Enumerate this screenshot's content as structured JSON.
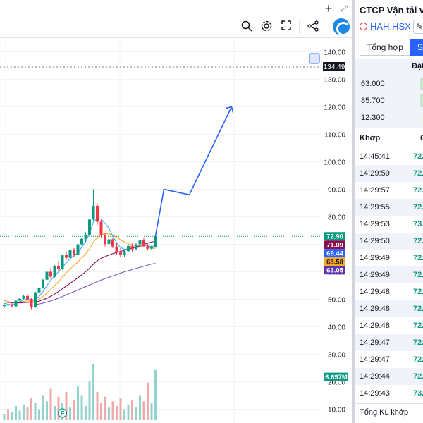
{
  "toolbar": {
    "plus_icon": "plus-icon",
    "expand_icon": "expand-icon",
    "magnifier_icon": "search-zoom-icon",
    "settings_icon": "gear-icon",
    "fullscreen_icon": "fullscreen-icon",
    "share_icon": "share-icon",
    "brand_icon": "brand-logo-icon"
  },
  "chart_data": {
    "type": "candlestick",
    "ylim": [
      5,
      145
    ],
    "y_ticks": [
      10,
      20,
      30,
      40,
      50,
      60,
      70,
      80,
      90,
      100,
      110,
      120,
      130,
      140
    ],
    "y_tick_labels": [
      "10.00",
      "20.00",
      "30.00",
      "40.00",
      "50.00",
      "60.00",
      "70.00",
      "80.00",
      "90.00",
      "100.00",
      "110.00",
      "120.00",
      "130.00",
      "140.00"
    ],
    "price_badges": [
      {
        "label": "134.49",
        "value": 134.49,
        "color": "#131722"
      },
      {
        "label": "72.90",
        "value": 72.9,
        "color": "#089981"
      },
      {
        "label": "71.09",
        "value": 71.09,
        "color": "#880e4f"
      },
      {
        "label": "69.44",
        "value": 69.44,
        "color": "#2962ff"
      },
      {
        "label": "68.58",
        "value": 68.58,
        "color": "#f9a825"
      },
      {
        "label": "63.05",
        "value": 63.05,
        "color": "#5e35b1"
      },
      {
        "label": "6.697M",
        "value": 21.5,
        "color": "#089981"
      }
    ],
    "current_price": 72.9,
    "candles": [
      [
        47.5,
        48.2,
        46.8,
        47.8
      ],
      [
        47.8,
        48.5,
        47.2,
        48.0
      ],
      [
        48.0,
        48.6,
        47.0,
        47.4
      ],
      [
        47.4,
        49.8,
        47.3,
        49.5
      ],
      [
        49.5,
        50.6,
        48.8,
        50.2
      ],
      [
        50.2,
        51.5,
        49.9,
        51.2
      ],
      [
        51.2,
        51.8,
        49.7,
        50.1
      ],
      [
        50.1,
        50.5,
        46.2,
        47.1
      ],
      [
        47.1,
        52.8,
        46.8,
        52.5
      ],
      [
        52.5,
        54.4,
        52.1,
        54.0
      ],
      [
        54.0,
        57.4,
        53.8,
        57.1
      ],
      [
        57.1,
        60.3,
        56.8,
        60.0
      ],
      [
        60.0,
        61.5,
        57.5,
        58.2
      ],
      [
        58.2,
        62.4,
        57.9,
        62.0
      ],
      [
        62.0,
        63.9,
        60.4,
        61.0
      ],
      [
        61.0,
        66.3,
        60.7,
        66.0
      ],
      [
        66.0,
        67.4,
        64.2,
        65.1
      ],
      [
        65.1,
        68.4,
        64.8,
        68.0
      ],
      [
        68.0,
        68.6,
        65.5,
        66.3
      ],
      [
        66.3,
        70.4,
        66.0,
        70.0
      ],
      [
        70.0,
        72.4,
        69.5,
        72.0
      ],
      [
        72.0,
        74.4,
        71.0,
        73.5
      ],
      [
        73.5,
        79.4,
        73.2,
        79.0
      ],
      [
        79.0,
        90.0,
        78.5,
        84.0
      ],
      [
        84.0,
        84.8,
        77.0,
        78.2
      ],
      [
        78.2,
        78.9,
        72.5,
        73.4
      ],
      [
        73.4,
        74.2,
        69.2,
        70.1
      ],
      [
        70.1,
        72.4,
        68.4,
        71.8
      ],
      [
        71.8,
        72.3,
        68.6,
        69.2
      ],
      [
        69.2,
        70.5,
        66.1,
        67.0
      ],
      [
        67.0,
        68.6,
        65.4,
        66.2
      ],
      [
        66.2,
        67.8,
        65.4,
        67.5
      ],
      [
        67.5,
        69.8,
        67.1,
        69.4
      ],
      [
        69.4,
        70.3,
        67.4,
        68.2
      ],
      [
        68.2,
        70.5,
        67.8,
        70.0
      ],
      [
        70.0,
        71.8,
        69.6,
        71.4
      ],
      [
        71.4,
        72.4,
        68.9,
        69.3
      ],
      [
        69.3,
        70.1,
        67.8,
        68.4
      ],
      [
        68.4,
        69.6,
        67.9,
        69.1
      ],
      [
        69.1,
        73.6,
        68.8,
        72.9
      ]
    ],
    "ma_series": [
      {
        "color": "#42a5f5",
        "values": [
          48.5,
          48.2,
          48.0,
          48.4,
          49.0,
          49.8,
          50.1,
          49.6,
          50.0,
          51.0,
          52.8,
          55.0,
          57.0,
          58.5,
          60.0,
          61.8,
          63.2,
          64.8,
          65.8,
          67.0,
          69.0,
          71.0,
          74.0,
          78.0,
          79.5,
          79.2,
          77.6,
          75.8,
          73.0,
          70.5,
          68.8,
          68.2,
          68.3,
          68.6,
          68.7,
          69.0,
          69.6,
          69.5,
          69.2,
          69.44
        ]
      },
      {
        "color": "#f9a825",
        "values": [
          49.5,
          49.2,
          48.9,
          48.8,
          48.9,
          49.2,
          49.4,
          49.3,
          49.5,
          50.0,
          51.0,
          52.3,
          53.6,
          55.0,
          56.4,
          58.0,
          59.6,
          61.0,
          62.3,
          63.6,
          65.0,
          66.5,
          68.4,
          70.8,
          72.5,
          73.5,
          73.9,
          73.8,
          73.4,
          72.6,
          71.6,
          70.8,
          70.2,
          69.8,
          69.4,
          69.2,
          69.0,
          68.8,
          68.6,
          68.58
        ]
      },
      {
        "color": "#880e4f",
        "values": [
          49.0,
          48.9,
          48.8,
          48.7,
          48.7,
          48.8,
          48.9,
          48.9,
          49.0,
          49.3,
          49.8,
          50.4,
          51.1,
          51.9,
          52.8,
          53.8,
          54.8,
          55.8,
          56.8,
          57.8,
          58.9,
          60.0,
          61.3,
          62.8,
          64.0,
          64.9,
          65.5,
          66.1,
          66.6,
          67.0,
          67.4,
          67.8,
          68.2,
          68.6,
          69.0,
          69.5,
          70.0,
          70.4,
          70.8,
          71.09
        ]
      },
      {
        "color": "#7e57c2",
        "values": [
          null,
          null,
          null,
          null,
          null,
          null,
          null,
          null,
          48.0,
          48.3,
          48.6,
          49.0,
          49.4,
          49.9,
          50.4,
          51.0,
          51.6,
          52.2,
          52.8,
          53.4,
          54.0,
          54.6,
          55.2,
          55.8,
          56.4,
          57.0,
          57.5,
          58.0,
          58.5,
          59.0,
          59.5,
          60.0,
          60.4,
          60.8,
          61.2,
          61.6,
          62.0,
          62.4,
          62.8,
          63.05
        ]
      }
    ],
    "forecast_line": [
      [
        72.9,
        0
      ],
      [
        90.0,
        1
      ],
      [
        88.0,
        4
      ],
      [
        120.0,
        9
      ]
    ],
    "volume": [
      0.4,
      0.7,
      0.5,
      0.9,
      0.6,
      1.0,
      0.8,
      1.4,
      1.1,
      0.7,
      1.6,
      1.2,
      2.0,
      0.9,
      1.5,
      1.1,
      1.8,
      0.8,
      1.3,
      2.2,
      1.6,
      0.9,
      2.5,
      3.6,
      1.8,
      1.1,
      1.5,
      0.8,
      1.2,
      0.9,
      1.4,
      0.7,
      1.0,
      1.3,
      0.8,
      1.6,
      1.2,
      2.4,
      1.1,
      3.2
    ],
    "volume_up": [
      1,
      0,
      1,
      1,
      1,
      1,
      0,
      0,
      1,
      1,
      1,
      1,
      0,
      1,
      0,
      1,
      0,
      1,
      0,
      1,
      1,
      1,
      1,
      1,
      0,
      0,
      0,
      1,
      0,
      0,
      0,
      1,
      1,
      0,
      1,
      1,
      0,
      0,
      1,
      1
    ],
    "marker_label": "F"
  },
  "side": {
    "company": "CTCP Vận tải và",
    "ticker": "HAH:HSX",
    "edit_icon": "pencil-icon",
    "alert_icon": "alarm-icon",
    "tabs": [
      "Tổng hợp",
      "Sổ"
    ],
    "book_header": "Đặt",
    "book": [
      "63.000",
      "85.700",
      "12.300"
    ],
    "trades_header": [
      "Khớp",
      "G"
    ],
    "trades": [
      {
        "time": "14:45:41",
        "price": "72."
      },
      {
        "time": "14:29:59",
        "price": "72."
      },
      {
        "time": "14:29:57",
        "price": "72."
      },
      {
        "time": "14:29:55",
        "price": "72."
      },
      {
        "time": "14:29:53",
        "price": "73."
      },
      {
        "time": "14:29:50",
        "price": "72."
      },
      {
        "time": "14:29:49",
        "price": "72."
      },
      {
        "time": "14:29:49",
        "price": "72."
      },
      {
        "time": "14:29:48",
        "price": "72."
      },
      {
        "time": "14:29:48",
        "price": "72."
      },
      {
        "time": "14:29:48",
        "price": "72."
      },
      {
        "time": "14:29:47",
        "price": "72."
      },
      {
        "time": "14:29:47",
        "price": "72."
      },
      {
        "time": "14:29:44",
        "price": "72."
      },
      {
        "time": "14:29:43",
        "price": "73."
      }
    ],
    "footer": "Tổng KL khớp"
  }
}
